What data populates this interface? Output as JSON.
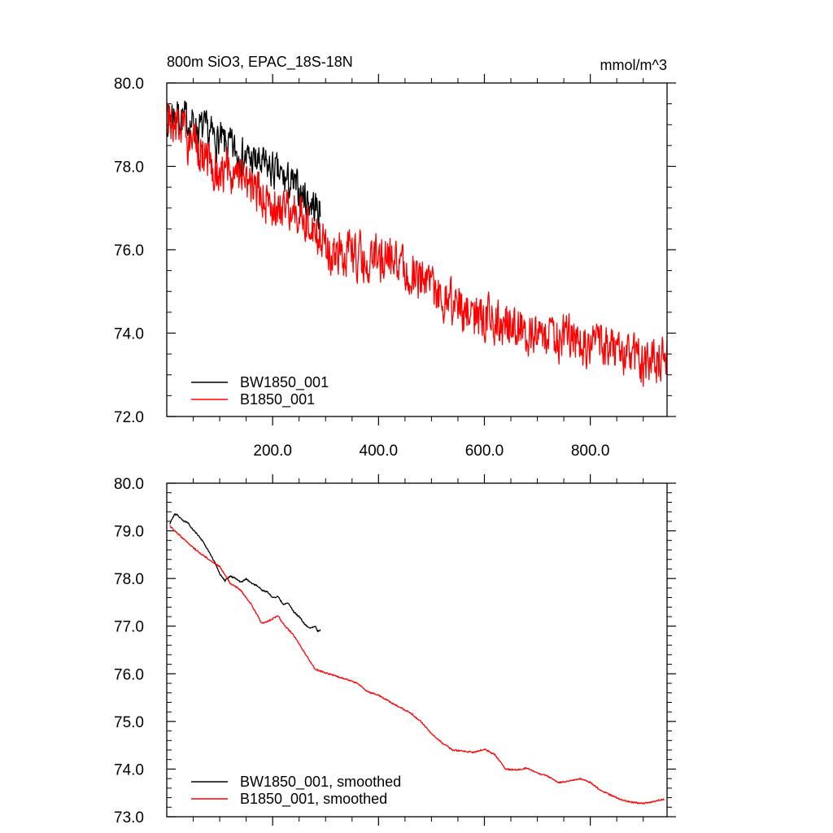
{
  "chart_data": [
    {
      "type": "line",
      "title": "800m SiO3, EPAC_18S-18N",
      "units": "mmol/m^3",
      "xlabel": "",
      "ylabel": "",
      "xlim": [
        0,
        945
      ],
      "ylim": [
        72.0,
        80.0
      ],
      "xticks": [
        200,
        400,
        600,
        800
      ],
      "xtick_labels": [
        "200.0",
        "400.0",
        "600.0",
        "800.0"
      ],
      "yticks": [
        72,
        74,
        76,
        78,
        80
      ],
      "ytick_labels": [
        "72.0",
        "74.0",
        "76.0",
        "78.0",
        "80.0"
      ],
      "legend_position": "bottom-left",
      "series": [
        {
          "name": "BW1850_001",
          "color": "#000000",
          "x_range": [
            1,
            290
          ],
          "noise": 0.45,
          "trend_x": [
            1,
            10,
            50,
            100,
            150,
            200,
            250,
            290
          ],
          "trend_y": [
            79.2,
            79.3,
            79.0,
            78.6,
            78.2,
            77.9,
            77.4,
            76.9
          ]
        },
        {
          "name": "B1850_001",
          "color": "#ff0000",
          "x_range": [
            1,
            945
          ],
          "noise": 0.55,
          "trend_x": [
            1,
            50,
            100,
            150,
            200,
            250,
            300,
            350,
            400,
            450,
            500,
            550,
            600,
            650,
            700,
            750,
            800,
            850,
            900,
            945
          ],
          "trend_y": [
            79.1,
            78.5,
            77.9,
            77.6,
            77.0,
            77.0,
            76.1,
            75.9,
            75.8,
            75.5,
            75.1,
            74.6,
            74.3,
            74.2,
            73.9,
            73.9,
            73.7,
            73.6,
            73.3,
            73.4
          ]
        }
      ]
    },
    {
      "type": "line",
      "title": "",
      "xlabel": "",
      "ylabel": "",
      "xlim": [
        0,
        945
      ],
      "ylim": [
        73.0,
        80.0
      ],
      "xticks": [
        200,
        400,
        600,
        800
      ],
      "yticks": [
        73,
        74,
        75,
        76,
        77,
        78,
        79,
        80
      ],
      "ytick_labels": [
        "73.0",
        "74.0",
        "75.0",
        "76.0",
        "77.0",
        "78.0",
        "79.0",
        "80.0"
      ],
      "legend_position": "bottom-left",
      "series": [
        {
          "name": "BW1850_001, smoothed",
          "color": "#000000",
          "x": [
            6,
            10,
            15,
            20,
            30,
            40,
            50,
            60,
            70,
            80,
            90,
            100,
            110,
            120,
            130,
            140,
            150,
            160,
            170,
            180,
            190,
            200,
            210,
            220,
            230,
            240,
            250,
            260,
            270,
            280,
            285,
            290
          ],
          "y": [
            79.15,
            79.25,
            79.35,
            79.33,
            79.22,
            79.17,
            79.02,
            78.9,
            78.75,
            78.55,
            78.35,
            78.1,
            77.95,
            78.05,
            78.0,
            77.92,
            78.0,
            77.9,
            77.85,
            77.75,
            77.72,
            77.6,
            77.62,
            77.45,
            77.48,
            77.3,
            77.2,
            77.05,
            76.95,
            77.0,
            76.9,
            76.92
          ]
        },
        {
          "name": "B1850_001, smoothed",
          "color": "#ff0000",
          "x": [
            6,
            20,
            40,
            60,
            80,
            100,
            120,
            140,
            160,
            180,
            200,
            210,
            220,
            240,
            260,
            280,
            300,
            320,
            340,
            360,
            380,
            400,
            420,
            440,
            460,
            480,
            500,
            520,
            540,
            560,
            580,
            600,
            620,
            640,
            660,
            680,
            700,
            720,
            740,
            760,
            780,
            800,
            820,
            840,
            860,
            880,
            900,
            920,
            940
          ],
          "y": [
            79.1,
            78.95,
            78.75,
            78.55,
            78.4,
            78.25,
            77.9,
            77.75,
            77.45,
            77.05,
            77.15,
            77.22,
            77.05,
            76.8,
            76.45,
            76.1,
            76.02,
            75.95,
            75.88,
            75.8,
            75.62,
            75.55,
            75.42,
            75.3,
            75.18,
            75.0,
            74.75,
            74.55,
            74.4,
            74.38,
            74.35,
            74.42,
            74.3,
            74.0,
            73.98,
            74.02,
            73.92,
            73.85,
            73.72,
            73.75,
            73.8,
            73.72,
            73.55,
            73.45,
            73.35,
            73.3,
            73.28,
            73.32,
            73.37
          ]
        }
      ]
    }
  ]
}
